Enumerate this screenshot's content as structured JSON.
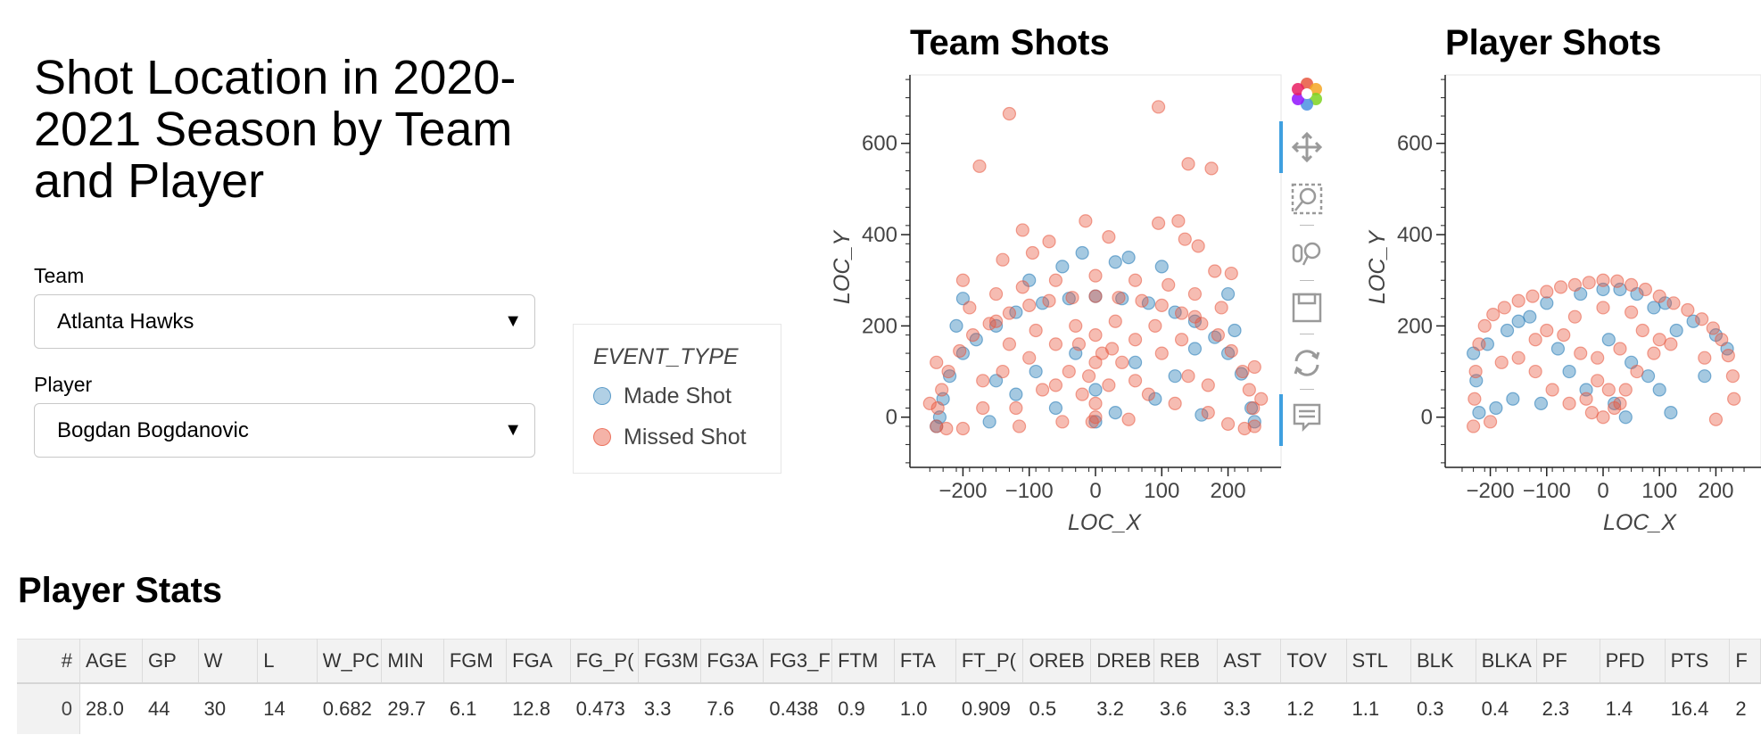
{
  "page_title": "Shot Location in 2020-2021 Season by Team and Player",
  "team_select": {
    "label": "Team",
    "value": "Atlanta Hawks"
  },
  "player_select": {
    "label": "Player",
    "value": "Bogdan Bogdanovic"
  },
  "legend": {
    "title": "EVENT_TYPE",
    "items": [
      {
        "label": "Made Shot",
        "color": "#1f77b4"
      },
      {
        "label": "Missed Shot",
        "color": "#e8573f"
      }
    ]
  },
  "toolbar": {
    "tools": [
      "bokeh-logo-icon",
      "pan-icon",
      "box-zoom-icon",
      "wheel-zoom-icon",
      "save-icon",
      "reset-icon",
      "hover-icon"
    ]
  },
  "chart_data": [
    {
      "type": "scatter",
      "title": "Team Shots",
      "xlabel": "LOC_X",
      "ylabel": "LOC_Y",
      "xlim": [
        -280,
        280
      ],
      "ylim": [
        -110,
        750
      ],
      "xticks": [
        -200,
        -100,
        0,
        100,
        200
      ],
      "yticks": [
        0,
        200,
        400,
        600
      ],
      "series": [
        {
          "name": "Made Shot",
          "color": "#1f77b4",
          "points": [
            [
              -235,
              0
            ],
            [
              -230,
              40
            ],
            [
              -220,
              90
            ],
            [
              -200,
              140
            ],
            [
              -180,
              170
            ],
            [
              -150,
              200
            ],
            [
              -120,
              230
            ],
            [
              -80,
              250
            ],
            [
              -40,
              260
            ],
            [
              0,
              265
            ],
            [
              40,
              260
            ],
            [
              80,
              250
            ],
            [
              120,
              230
            ],
            [
              150,
              210
            ],
            [
              180,
              175
            ],
            [
              200,
              140
            ],
            [
              220,
              95
            ],
            [
              235,
              20
            ],
            [
              -150,
              80
            ],
            [
              -120,
              50
            ],
            [
              -90,
              100
            ],
            [
              -60,
              20
            ],
            [
              -30,
              140
            ],
            [
              0,
              60
            ],
            [
              30,
              10
            ],
            [
              60,
              120
            ],
            [
              90,
              40
            ],
            [
              120,
              90
            ],
            [
              150,
              150
            ],
            [
              -100,
              300
            ],
            [
              -50,
              330
            ],
            [
              50,
              350
            ],
            [
              100,
              330
            ],
            [
              -200,
              260
            ],
            [
              200,
              270
            ],
            [
              -160,
              -10
            ],
            [
              160,
              5
            ],
            [
              -20,
              360
            ],
            [
              30,
              340
            ],
            [
              -240,
              -20
            ],
            [
              240,
              -10
            ],
            [
              -210,
              200
            ],
            [
              210,
              190
            ],
            [
              0,
              -10
            ]
          ]
        },
        {
          "name": "Missed Shot",
          "color": "#e8573f",
          "points": [
            [
              -240,
              -20
            ],
            [
              -238,
              20
            ],
            [
              -232,
              60
            ],
            [
              -222,
              100
            ],
            [
              -205,
              145
            ],
            [
              -185,
              180
            ],
            [
              -160,
              205
            ],
            [
              -130,
              228
            ],
            [
              -100,
              245
            ],
            [
              -70,
              255
            ],
            [
              -35,
              262
            ],
            [
              0,
              265
            ],
            [
              35,
              262
            ],
            [
              70,
              255
            ],
            [
              100,
              245
            ],
            [
              130,
              228
            ],
            [
              160,
              205
            ],
            [
              185,
              180
            ],
            [
              205,
              145
            ],
            [
              222,
              100
            ],
            [
              232,
              60
            ],
            [
              238,
              20
            ],
            [
              240,
              -20
            ],
            [
              -225,
              -25
            ],
            [
              225,
              -25
            ],
            [
              -190,
              240
            ],
            [
              190,
              240
            ],
            [
              -150,
              270
            ],
            [
              150,
              270
            ],
            [
              -110,
              285
            ],
            [
              110,
              290
            ],
            [
              -60,
              300
            ],
            [
              60,
              300
            ],
            [
              0,
              310
            ],
            [
              -40,
              100
            ],
            [
              -20,
              50
            ],
            [
              0,
              30
            ],
            [
              20,
              70
            ],
            [
              40,
              120
            ],
            [
              -60,
              160
            ],
            [
              60,
              170
            ],
            [
              -80,
              60
            ],
            [
              80,
              50
            ],
            [
              -100,
              130
            ],
            [
              100,
              140
            ],
            [
              -120,
              20
            ],
            [
              120,
              30
            ],
            [
              -140,
              100
            ],
            [
              140,
              90
            ],
            [
              0,
              180
            ],
            [
              -30,
              200
            ],
            [
              30,
              210
            ],
            [
              -170,
              80
            ],
            [
              170,
              70
            ],
            [
              -50,
              -10
            ],
            [
              50,
              -5
            ],
            [
              0,
              0
            ],
            [
              -10,
              90
            ],
            [
              10,
              140
            ],
            [
              -90,
              190
            ],
            [
              90,
              200
            ],
            [
              -175,
              550
            ],
            [
              -130,
              665
            ],
            [
              95,
              680
            ],
            [
              140,
              555
            ],
            [
              175,
              545
            ],
            [
              -110,
              410
            ],
            [
              -70,
              385
            ],
            [
              -15,
              430
            ],
            [
              20,
              395
            ],
            [
              95,
              425
            ],
            [
              125,
              430
            ],
            [
              135,
              390
            ],
            [
              155,
              375
            ],
            [
              -140,
              345
            ],
            [
              -95,
              360
            ],
            [
              -200,
              300
            ],
            [
              205,
              315
            ],
            [
              180,
              320
            ],
            [
              -170,
              20
            ],
            [
              170,
              10
            ],
            [
              -115,
              -20
            ],
            [
              -5,
              -10
            ],
            [
              -150,
              210
            ],
            [
              150,
              220
            ],
            [
              -240,
              120
            ],
            [
              240,
              110
            ],
            [
              -250,
              30
            ],
            [
              250,
              40
            ],
            [
              -200,
              -25
            ],
            [
              200,
              -15
            ],
            [
              -60,
              70
            ],
            [
              60,
              80
            ],
            [
              -130,
              160
            ],
            [
              130,
              170
            ],
            [
              0,
              120
            ],
            [
              -25,
              160
            ],
            [
              25,
              150
            ]
          ]
        }
      ]
    },
    {
      "type": "scatter",
      "title": "Player Shots",
      "xlabel": "LOC_X",
      "ylabel": "LOC_Y",
      "xlim": [
        -280,
        280
      ],
      "ylim": [
        -110,
        750
      ],
      "xticks": [
        -200,
        -100,
        0,
        100,
        200
      ],
      "yticks": [
        0,
        200,
        400,
        600
      ],
      "series": [
        {
          "name": "Made Shot",
          "color": "#1f77b4",
          "points": [
            [
              -230,
              140
            ],
            [
              -225,
              80
            ],
            [
              -220,
              10
            ],
            [
              -205,
              160
            ],
            [
              -190,
              20
            ],
            [
              -170,
              190
            ],
            [
              -150,
              210
            ],
            [
              -130,
              220
            ],
            [
              -100,
              250
            ],
            [
              -80,
              150
            ],
            [
              -60,
              100
            ],
            [
              -40,
              270
            ],
            [
              -30,
              60
            ],
            [
              0,
              280
            ],
            [
              10,
              170
            ],
            [
              20,
              30
            ],
            [
              30,
              280
            ],
            [
              50,
              120
            ],
            [
              60,
              270
            ],
            [
              80,
              90
            ],
            [
              90,
              240
            ],
            [
              100,
              60
            ],
            [
              110,
              250
            ],
            [
              130,
              190
            ],
            [
              160,
              210
            ],
            [
              180,
              90
            ],
            [
              200,
              180
            ],
            [
              220,
              150
            ],
            [
              -160,
              40
            ],
            [
              -110,
              30
            ],
            [
              40,
              0
            ],
            [
              120,
              10
            ]
          ]
        },
        {
          "name": "Missed Shot",
          "color": "#e8573f",
          "points": [
            [
              -230,
              -20
            ],
            [
              -228,
              40
            ],
            [
              -226,
              100
            ],
            [
              -220,
              160
            ],
            [
              -210,
              200
            ],
            [
              -195,
              225
            ],
            [
              -175,
              240
            ],
            [
              -150,
              255
            ],
            [
              -125,
              265
            ],
            [
              -100,
              275
            ],
            [
              -75,
              285
            ],
            [
              -50,
              290
            ],
            [
              -25,
              295
            ],
            [
              0,
              300
            ],
            [
              25,
              298
            ],
            [
              50,
              290
            ],
            [
              75,
              280
            ],
            [
              100,
              265
            ],
            [
              125,
              250
            ],
            [
              150,
              235
            ],
            [
              175,
              215
            ],
            [
              195,
              195
            ],
            [
              210,
              170
            ],
            [
              222,
              135
            ],
            [
              230,
              90
            ],
            [
              232,
              40
            ],
            [
              -150,
              130
            ],
            [
              -120,
              100
            ],
            [
              -90,
              60
            ],
            [
              -60,
              30
            ],
            [
              -20,
              10
            ],
            [
              0,
              0
            ],
            [
              20,
              20
            ],
            [
              40,
              60
            ],
            [
              60,
              100
            ],
            [
              90,
              140
            ],
            [
              -40,
              140
            ],
            [
              -10,
              130
            ],
            [
              30,
              150
            ],
            [
              -70,
              180
            ],
            [
              70,
              190
            ],
            [
              -100,
              190
            ],
            [
              100,
              170
            ],
            [
              -10,
              80
            ],
            [
              10,
              60
            ],
            [
              -30,
              40
            ],
            [
              30,
              30
            ],
            [
              -200,
              -10
            ],
            [
              200,
              -5
            ],
            [
              -180,
              120
            ],
            [
              180,
              130
            ],
            [
              -120,
              170
            ],
            [
              120,
              160
            ],
            [
              0,
              240
            ],
            [
              -50,
              220
            ],
            [
              50,
              230
            ]
          ]
        }
      ]
    }
  ],
  "player_stats": {
    "title": "Player Stats",
    "columns": [
      "#",
      "AGE",
      "GP",
      "W",
      "L",
      "W_PC",
      "MIN",
      "FGM",
      "FGA",
      "FG_P(",
      "FG3M",
      "FG3A",
      "FG3_F",
      "FTM",
      "FTA",
      "FT_P(",
      "OREB",
      "DREB",
      "REB",
      "AST",
      "TOV",
      "STL",
      "BLK",
      "BLKA",
      "PF",
      "PFD",
      "PTS",
      "F"
    ],
    "rows": [
      [
        "0",
        "28.0",
        "44",
        "30",
        "14",
        "0.682",
        "29.7",
        "6.1",
        "12.8",
        "0.473",
        "3.3",
        "7.6",
        "0.438",
        "0.9",
        "1.0",
        "0.909",
        "0.5",
        "3.2",
        "3.6",
        "3.3",
        "1.2",
        "1.1",
        "0.3",
        "0.4",
        "2.3",
        "1.4",
        "16.4",
        "2"
      ]
    ]
  }
}
